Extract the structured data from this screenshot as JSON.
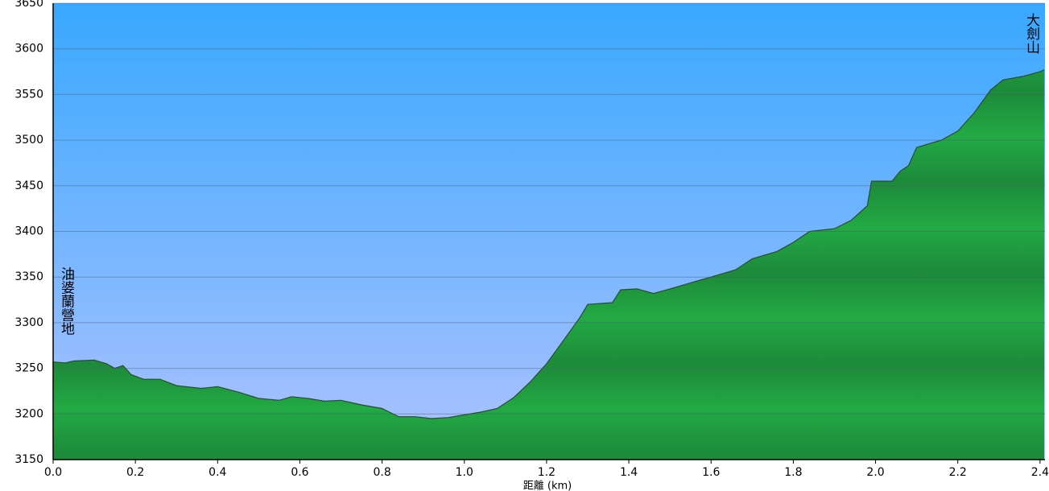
{
  "chart_data": {
    "type": "area",
    "xlabel": "距離 (km)",
    "annotations": [
      "油婆蘭營地",
      "大劍山"
    ],
    "x": [
      0,
      0.03,
      0.05,
      0.1,
      0.13,
      0.15,
      0.17,
      0.19,
      0.22,
      0.26,
      0.3,
      0.36,
      0.4,
      0.45,
      0.5,
      0.55,
      0.58,
      0.62,
      0.66,
      0.7,
      0.75,
      0.8,
      0.84,
      0.88,
      0.92,
      0.96,
      1.0,
      1.04,
      1.08,
      1.12,
      1.16,
      1.2,
      1.24,
      1.28,
      1.3,
      1.36,
      1.38,
      1.42,
      1.46,
      1.5,
      1.56,
      1.6,
      1.66,
      1.7,
      1.76,
      1.8,
      1.84,
      1.9,
      1.94,
      1.98,
      1.99,
      2.04,
      2.06,
      2.08,
      2.1,
      2.16,
      2.2,
      2.24,
      2.28,
      2.31,
      2.36,
      2.4,
      2.41
    ],
    "values": [
      3257,
      3256,
      3258,
      3259,
      3255,
      3250,
      3253,
      3243,
      3238,
      3238,
      3231,
      3228,
      3230,
      3224,
      3217,
      3215,
      3219,
      3217,
      3214,
      3215,
      3210,
      3206,
      3197,
      3197,
      3195,
      3196,
      3199,
      3202,
      3206,
      3218,
      3235,
      3255,
      3280,
      3305,
      3320,
      3322,
      3336,
      3337,
      3332,
      3337,
      3345,
      3350,
      3358,
      3370,
      3378,
      3388,
      3400,
      3403,
      3412,
      3428,
      3455,
      3455,
      3466,
      3472,
      3492,
      3500,
      3510,
      3530,
      3555,
      3566,
      3570,
      3575,
      3577
    ],
    "color": "#22aa44",
    "xlim": [
      0,
      2.412
    ],
    "ylim": [
      3150,
      3650
    ],
    "xticks": [
      {
        "value": 0,
        "label": "0.0"
      },
      0.2,
      0.4,
      0.6,
      0.8,
      {
        "value": 1,
        "label": "1.0"
      },
      1.2,
      1.4,
      1.6,
      1.8,
      {
        "value": 2,
        "label": "2.0"
      },
      2.2,
      2.4
    ],
    "yticks": [
      3150,
      3200,
      3250,
      3300,
      3350,
      3400,
      3450,
      3500,
      3550,
      3600,
      3650
    ],
    "grid": true
  }
}
